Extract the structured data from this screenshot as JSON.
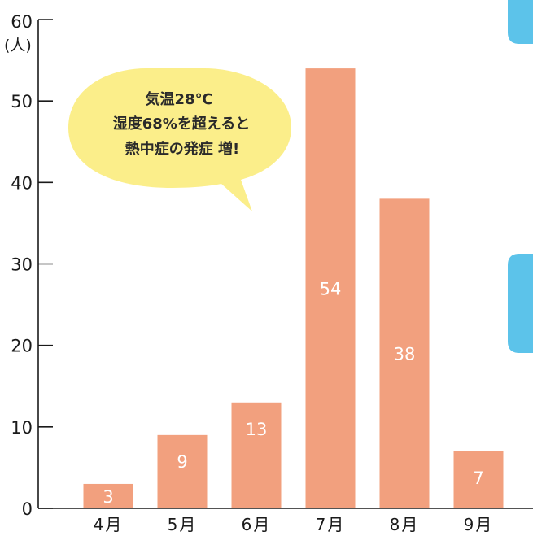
{
  "chart_data": {
    "type": "bar",
    "categories": [
      "4月",
      "5月",
      "6月",
      "7月",
      "8月",
      "9月"
    ],
    "values": [
      3,
      9,
      13,
      54,
      38,
      7
    ],
    "data_labels": [
      "3",
      "9",
      "13",
      "54",
      "38",
      "7"
    ],
    "ylim": [
      0,
      60
    ],
    "yticks": [
      "0",
      "10",
      "20",
      "30",
      "40",
      "50",
      "60"
    ],
    "y_unit": "(人)",
    "grid": false,
    "bar_color": "#f2a07e",
    "axis_color": "#1a1a1a",
    "annotation": {
      "lines": [
        "気温28℃",
        "湿度68%を超えると",
        "熱中症の発症 増!"
      ],
      "color": "#fbee8a"
    },
    "side_tab_color": "#5cc3ea"
  }
}
